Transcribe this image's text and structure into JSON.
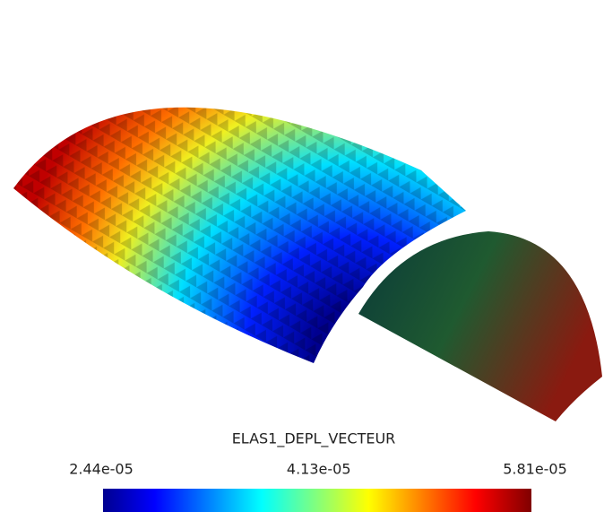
{
  "legend": {
    "title": "ELAS1_DEPL_VECTEUR",
    "ticks": [
      {
        "value": 2.44e-05,
        "label": "2.44e-05"
      },
      {
        "value": 4.13e-05,
        "label": "4.13e-05"
      },
      {
        "value": 5.81e-05,
        "label": "5.81e-05"
      }
    ]
  }
}
